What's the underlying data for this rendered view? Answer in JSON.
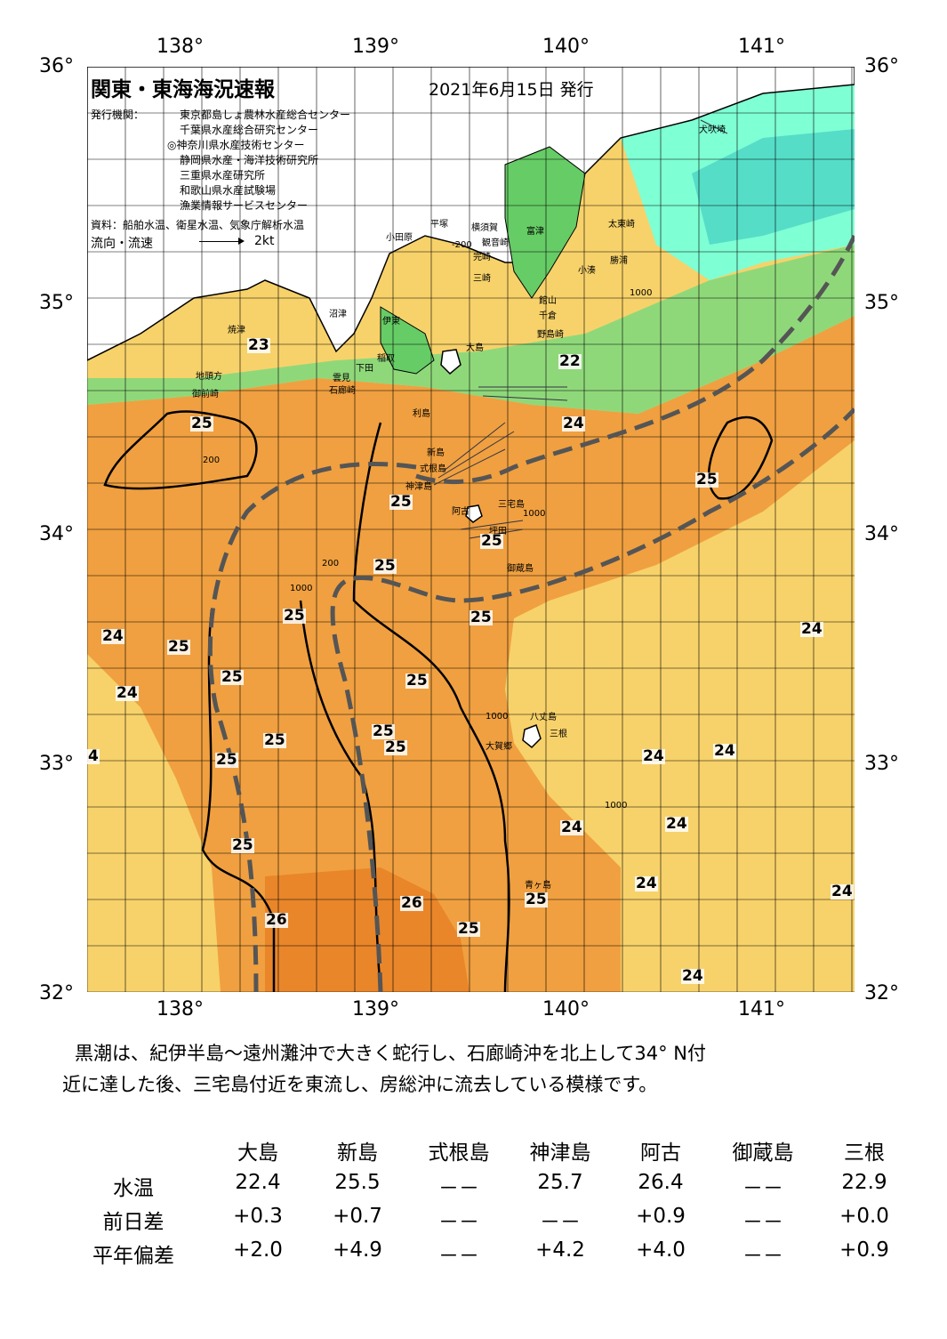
{
  "header": {
    "title": "関東・東海海況速報",
    "date": "2021年6月15日 発行",
    "issuer_label": "発行機関：",
    "issuers": [
      "東京都島しょ農林水産総合センター",
      "千葉県水産総合研究センター",
      "◎神奈川県水産技術センター",
      "静岡県水産・海洋技術研究所",
      "三重県水産研究所",
      "和歌山県水産試験場",
      "漁業情報サービスセンター"
    ],
    "source": "資料：船舶水温、衛星水温、気象庁解析水温",
    "flow_legend": "流向・流速",
    "flow_scale": "2kt"
  },
  "axes": {
    "lon_labels": [
      "138°",
      "139°",
      "140°",
      "141°"
    ],
    "lat_labels": [
      "36°",
      "35°",
      "34°",
      "33°",
      "32°"
    ]
  },
  "places": [
    "犬吠埼",
    "太東崎",
    "勝浦",
    "小湊",
    "館山",
    "千倉",
    "野島崎",
    "富津",
    "横須賀",
    "観音崎",
    "平塚",
    "完崎",
    "小田原",
    "三崎",
    "大島",
    "沼津",
    "伊東",
    "焼津",
    "稲取",
    "下田",
    "雲見",
    "石廊崎",
    "地頭方",
    "御前崎",
    "利島",
    "新島",
    "式根島",
    "神津島",
    "三宅島",
    "阿古",
    "坪田",
    "御蔵島",
    "八丈島",
    "三根",
    "大賀郷",
    "青ヶ島"
  ],
  "isotherm_labels": [
    "23",
    "22",
    "24",
    "25",
    "25",
    "25",
    "25",
    "25",
    "25",
    "25",
    "25",
    "25",
    "25",
    "25",
    "25",
    "25",
    "25",
    "25",
    "25",
    "25",
    "24",
    "24",
    "24",
    "24",
    "24",
    "24",
    "24",
    "24",
    "24",
    "24",
    "26",
    "26",
    "25",
    "25",
    "4"
  ],
  "depth_labels": [
    "-200",
    "1000",
    "1000",
    "200",
    "1000",
    "200",
    "1000",
    "1000"
  ],
  "colors": {
    "cold_cyan": "#7fffd4",
    "green": "#66cc66",
    "yellow": "#f7d26a",
    "orange": "#f0a040",
    "dark_orange": "#e9862a",
    "land": "#ffffff",
    "kuroshio_axis": "#555555"
  },
  "description": [
    "黒潮は、紀伊半島～遠州灘沖で大きく蛇行し、石廊崎沖を北上して34° N付",
    "近に達した後、三宅島付近を東流し、房総沖に流去している模様です。"
  ],
  "table": {
    "columns": [
      "大島",
      "新島",
      "式根島",
      "神津島",
      "阿古",
      "御蔵島",
      "三根"
    ],
    "rows": [
      {
        "label": "水温",
        "values": [
          "22.4",
          "25.5",
          "－－",
          "25.7",
          "26.4",
          "－－",
          "22.9"
        ]
      },
      {
        "label": "前日差",
        "values": [
          "+0.3",
          "+0.7",
          "－－",
          "－－",
          "+0.9",
          "－－",
          "+0.0"
        ]
      },
      {
        "label": "平年偏差",
        "values": [
          "+2.0",
          "+4.9",
          "－－",
          "+4.2",
          "+4.0",
          "－－",
          "+0.9"
        ]
      }
    ]
  }
}
